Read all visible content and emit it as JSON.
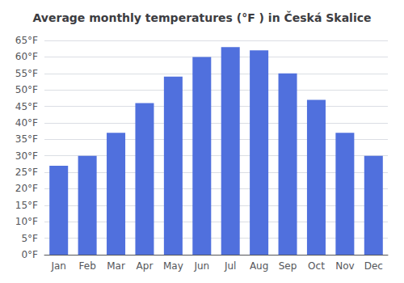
{
  "chart_data": {
    "type": "bar",
    "title": "Average monthly temperatures (°F ) in Česká Skalice",
    "categories": [
      "Jan",
      "Feb",
      "Mar",
      "Apr",
      "May",
      "Jun",
      "Jul",
      "Aug",
      "Sep",
      "Oct",
      "Nov",
      "Dec"
    ],
    "values": [
      27,
      30,
      37,
      46,
      54,
      60,
      63,
      62,
      55,
      47,
      37,
      30
    ],
    "ylim": [
      0,
      65
    ],
    "yticks": [
      {
        "value": 0,
        "label": "0°F"
      },
      {
        "value": 5,
        "label": "5°F"
      },
      {
        "value": 10,
        "label": "10°F"
      },
      {
        "value": 15,
        "label": "15°F"
      },
      {
        "value": 20,
        "label": "20°F"
      },
      {
        "value": 25,
        "label": "25°F"
      },
      {
        "value": 30,
        "label": "30°F"
      },
      {
        "value": 35,
        "label": "35°F"
      },
      {
        "value": 40,
        "label": "40°F"
      },
      {
        "value": 45,
        "label": "45°F"
      },
      {
        "value": 50,
        "label": "50°F"
      },
      {
        "value": 55,
        "label": "55°F"
      },
      {
        "value": 60,
        "label": "60°F"
      },
      {
        "value": 65,
        "label": "65°F"
      }
    ],
    "grid": true
  }
}
